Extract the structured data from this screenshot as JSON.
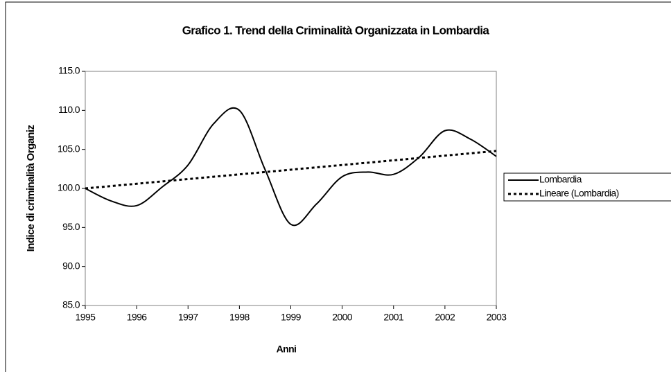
{
  "chart_data": {
    "type": "line",
    "title": "Grafico 1. Trend della Criminalità Organizzata in Lombardia",
    "xlabel": "Anni",
    "ylabel": "Indice di criminalità Organiz",
    "x": [
      1995,
      1995.5,
      1996,
      1996.5,
      1997,
      1997.5,
      1998,
      1998.5,
      1999,
      1999.5,
      2000,
      2000.5,
      2001,
      2001.5,
      2002,
      2002.5,
      2003
    ],
    "series": [
      {
        "name": "Lombardia",
        "color": "#000000",
        "style": "solid",
        "smooth": true,
        "values": [
          100.0,
          98.4,
          97.8,
          100.2,
          103.0,
          108.3,
          110.0,
          102.4,
          95.4,
          98.0,
          101.5,
          102.1,
          101.8,
          104.0,
          107.4,
          106.3,
          104.1
        ]
      },
      {
        "name": "Lineare (Lombardia)",
        "color": "#000000",
        "style": "dotted",
        "smooth": false,
        "values": [
          100.0,
          100.3,
          100.6,
          100.9,
          101.2,
          101.5,
          101.8,
          102.1,
          102.4,
          102.7,
          103.0,
          103.3,
          103.6,
          103.9,
          104.2,
          104.5,
          104.8
        ]
      }
    ],
    "xlim": [
      1995,
      2003
    ],
    "xticks": [
      1995,
      1996,
      1997,
      1998,
      1999,
      2000,
      2001,
      2002,
      2003
    ],
    "ylim": [
      85,
      115
    ],
    "yticks": [
      {
        "value": 85,
        "label": "85.0"
      },
      {
        "value": 90,
        "label": "90.0"
      },
      {
        "value": 95,
        "label": "95.0"
      },
      {
        "value": 100,
        "label": "100.0"
      },
      {
        "value": 105,
        "label": "105.0"
      },
      {
        "value": 110,
        "label": "110.0"
      },
      {
        "value": 115,
        "label": "115.0"
      }
    ],
    "legend": "right"
  }
}
